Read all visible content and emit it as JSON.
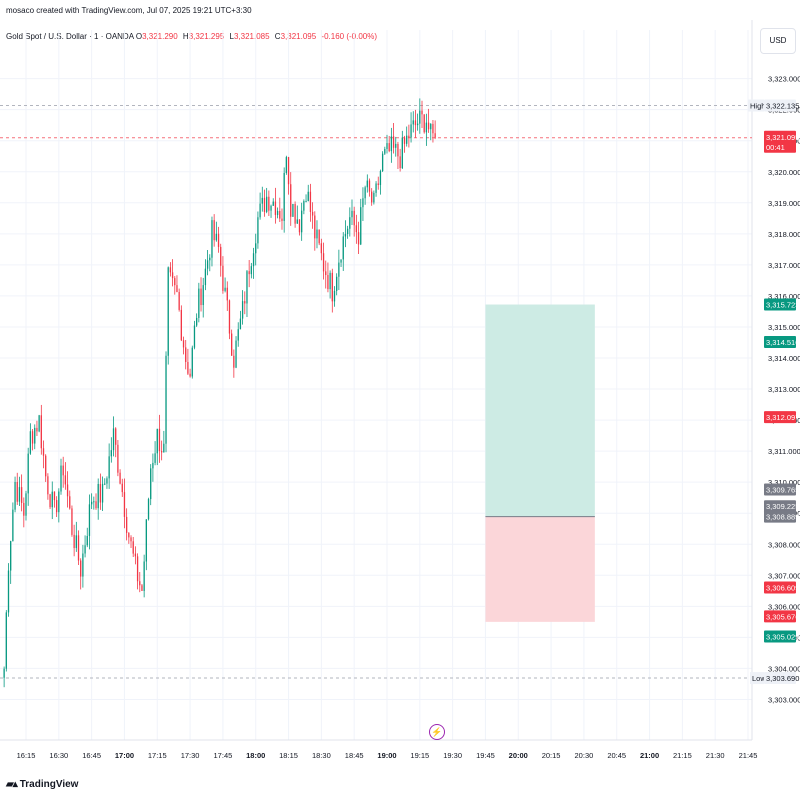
{
  "header": {
    "created_line": "mosaco created with TradingView.com, Jul 07, 2025 19:21 UTC+3:30",
    "symbol": "Gold Spot / U.S. Dollar · 1 · OANDA",
    "ohlc": [
      {
        "k": "O",
        "v": "3,321.290"
      },
      {
        "k": "H",
        "v": "3,321.295"
      },
      {
        "k": "L",
        "v": "3,321.085"
      },
      {
        "k": "C",
        "v": "3,321.095"
      }
    ],
    "change": "-0.160 (-0.00%)"
  },
  "currency": "USD",
  "footer_logo": "TradingView",
  "colors": {
    "up": "#089981",
    "down": "#f23645",
    "profit_zone": "#cdebe4",
    "loss_zone": "#fbd6d9",
    "grid": "#f0f3fa"
  },
  "chart_data": {
    "type": "candlestick",
    "interval": "1 minute",
    "ylim": [
      3302.5,
      3323.6
    ],
    "y_ticks": [
      "3,303.000",
      "3,304.000",
      "3,305.000",
      "3,306.000",
      "3,307.000",
      "3,308.000",
      "3,309.000",
      "3,310.000",
      "3,311.000",
      "3,312.000",
      "3,313.000",
      "3,314.000",
      "3,315.000",
      "3,316.000",
      "3,317.000",
      "3,318.000",
      "3,319.000",
      "3,320.000",
      "3,321.000",
      "3,322.000",
      "3,323.000"
    ],
    "x_ticks": [
      "16:15",
      "16:30",
      "16:45",
      "17:00",
      "17:15",
      "17:30",
      "17:45",
      "18:00",
      "18:15",
      "18:30",
      "18:45",
      "19:00",
      "19:15",
      "19:30",
      "19:45",
      "20:00",
      "20:15",
      "20:30",
      "20:45",
      "21:00",
      "21:15",
      "21:30",
      "21:45"
    ],
    "bold_x_ticks": [
      "17:00",
      "18:00",
      "19:00",
      "20:00",
      "21:00"
    ],
    "high": {
      "label": "High",
      "value": 3322.135,
      "text": "3,322.135"
    },
    "low": {
      "label": "Low",
      "value": 3303.69,
      "text": "3,303.690"
    },
    "last_price": {
      "value": 3321.095,
      "text": "3,321.095",
      "countdown": "00:41"
    },
    "price_labels": [
      {
        "value": 3315.723,
        "text": "3,315.723",
        "color": "#089981"
      },
      {
        "value": 3314.516,
        "text": "3,314.516",
        "color": "#089981"
      },
      {
        "value": 3312.097,
        "text": "3,312.097",
        "color": "#f23645"
      },
      {
        "value": 3309.765,
        "text": "3,309.765",
        "color": "#787b86"
      },
      {
        "value": 3309.225,
        "text": "3,309.225",
        "color": "#787b86"
      },
      {
        "value": 3308.889,
        "text": "3,308.889",
        "color": "#787b86"
      },
      {
        "value": 3306.609,
        "text": "3,306.609",
        "color": "#f23645"
      },
      {
        "value": 3305.676,
        "text": "3,305.676",
        "color": "#f23645"
      },
      {
        "value": 3305.029,
        "text": "3,305.029",
        "color": "#089981"
      }
    ],
    "position": {
      "side": "long",
      "time_start": "19:45",
      "time_end": "20:35",
      "take_profit": 3315.723,
      "entry": 3308.889,
      "stop_loss": 3305.5
    },
    "candles": {
      "time_start": "16:05",
      "time_end": "19:22",
      "anchors": [
        [
          "16:05",
          3304.0
        ],
        [
          "16:07",
          3307.5
        ],
        [
          "16:10",
          3310.0
        ],
        [
          "16:14",
          3309.0
        ],
        [
          "16:17",
          3311.5
        ],
        [
          "16:21",
          3312.0
        ],
        [
          "16:24",
          3310.2
        ],
        [
          "16:28",
          3309.0
        ],
        [
          "16:32",
          3310.5
        ],
        [
          "16:36",
          3308.5
        ],
        [
          "16:40",
          3307.2
        ],
        [
          "16:45",
          3309.5
        ],
        [
          "16:50",
          3309.6
        ],
        [
          "16:55",
          3311.5
        ],
        [
          "16:58",
          3310.2
        ],
        [
          "17:02",
          3308.3
        ],
        [
          "17:05",
          3307.2
        ],
        [
          "17:08",
          3306.5
        ],
        [
          "17:12",
          3310.5
        ],
        [
          "17:15",
          3311.5
        ],
        [
          "17:18",
          3311.0
        ],
        [
          "17:20",
          3316.5
        ],
        [
          "17:24",
          3316.0
        ],
        [
          "17:28",
          3314.0
        ],
        [
          "17:30",
          3313.5
        ],
        [
          "17:33",
          3315.5
        ],
        [
          "17:37",
          3316.8
        ],
        [
          "17:40",
          3318.0
        ],
        [
          "17:43",
          3317.5
        ],
        [
          "17:47",
          3315.5
        ],
        [
          "17:50",
          3314.0
        ],
        [
          "17:54",
          3315.5
        ],
        [
          "17:57",
          3317.0
        ],
        [
          "18:01",
          3318.5
        ],
        [
          "18:05",
          3319.2
        ],
        [
          "18:09",
          3319.0
        ],
        [
          "18:12",
          3318.6
        ],
        [
          "18:14",
          3320.8
        ],
        [
          "18:16",
          3319.0
        ],
        [
          "18:20",
          3318.4
        ],
        [
          "18:23",
          3319.5
        ],
        [
          "18:27",
          3318.0
        ],
        [
          "18:31",
          3317.0
        ],
        [
          "18:35",
          3316.2
        ],
        [
          "18:39",
          3317.6
        ],
        [
          "18:43",
          3318.5
        ],
        [
          "18:47",
          3318.0
        ],
        [
          "18:50",
          3319.5
        ],
        [
          "18:54",
          3318.9
        ],
        [
          "18:58",
          3320.4
        ],
        [
          "19:02",
          3320.7
        ],
        [
          "19:06",
          3320.5
        ],
        [
          "19:10",
          3321.2
        ],
        [
          "19:14",
          3321.6
        ],
        [
          "19:18",
          3321.7
        ],
        [
          "19:20",
          3321.1
        ],
        [
          "19:22",
          3321.095
        ]
      ]
    }
  }
}
